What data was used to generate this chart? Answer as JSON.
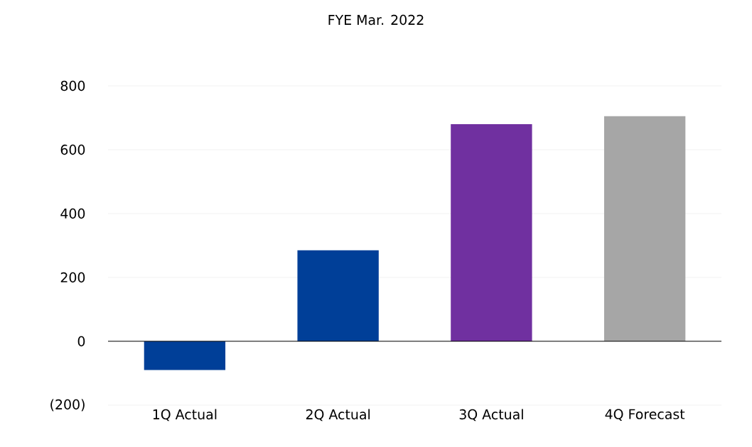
{
  "chart_data": {
    "type": "bar",
    "title": "FYE Mar. 2022",
    "categories": [
      "1Q Actual",
      "2Q Actual",
      "3Q Actual",
      "4Q Forecast"
    ],
    "values": [
      -90,
      285,
      680,
      705
    ],
    "colors": [
      "#003f98",
      "#003f98",
      "#7030a0",
      "#a6a6a6"
    ],
    "ylim": [
      -200,
      800
    ],
    "yticks": [
      {
        "value": -200,
        "label": "(200)"
      },
      0,
      200,
      400,
      600,
      800
    ],
    "grid": "y"
  }
}
